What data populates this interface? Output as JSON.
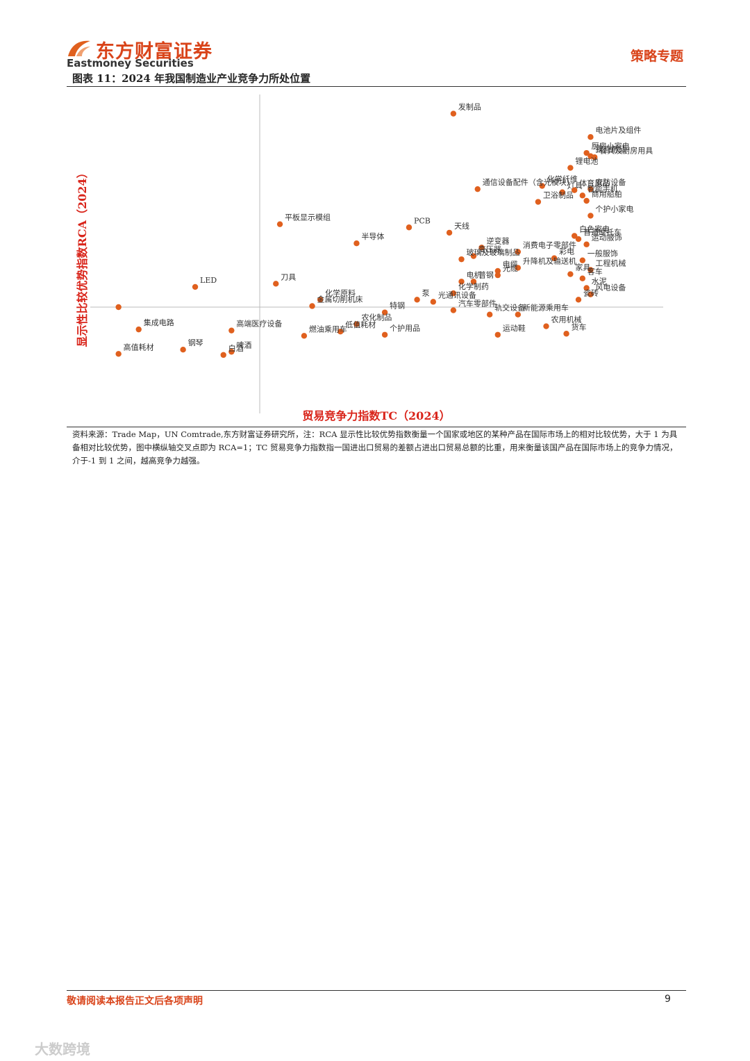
{
  "header": {
    "brand": "东方财富证券",
    "brand_en": "Eastmoney Securities",
    "section": "策略专题"
  },
  "figure_title": "图表 11：2024 年我国制造业产业竞争力所处位置",
  "chart_data": {
    "type": "scatter",
    "x_label": "贸易竞争力指数TC（2024）",
    "y_label": "显示性比较优势指数RCA（2024）",
    "color": "#e0601e",
    "label_color": "#333333",
    "axis_label_color": "#d9241a",
    "xlim": [
      -0.42,
      1.0
    ],
    "ylim": [
      0,
      3
    ],
    "axis_cross": {
      "x": 0,
      "y": 1
    },
    "labels": [
      "发制品",
      "电池片及组件",
      "厨房小家电",
      "餐具及厨房用具",
      "露营用品",
      "锂电池",
      "化学纤维",
      "安防设备",
      "灯具",
      "体育用品",
      "智能手机",
      "卫浴制品",
      "商用船舶",
      "通信设备配件（含光模块）",
      "个护小家电",
      "平板显示模组",
      "PCB",
      "白色家电",
      "普通摩托车",
      "天线",
      "半导体",
      "逆变器",
      "消费电子零部件",
      "运动服饰",
      "变压器",
      "彩电",
      "玻璃及玻璃制品",
      "一般服饰",
      "电缆",
      "升降机及输送机",
      "工程机械",
      "家具",
      "光缆",
      "客车",
      "电机",
      "普钢",
      "刀具",
      "LED",
      "水泥",
      "化学制药",
      "风电设备",
      "化学原料",
      "泵",
      "瓷砖",
      "光通讯设备",
      "金属切削机床",
      null,
      "汽车零部件",
      "特钢",
      "新能源乘用车",
      "轨交设备",
      "农化制品",
      "农用机械",
      "集成电路",
      "高端医疗设备",
      "低值耗材",
      "个护用品",
      "货车",
      "运动鞋",
      "燃油乘用车",
      "钢琴",
      "啤酒",
      "白酒",
      "高值耗材"
    ],
    "x": [
      0.48,
      0.82,
      0.81,
      0.83,
      0.82,
      0.77,
      0.7,
      0.82,
      0.75,
      0.78,
      0.8,
      0.69,
      0.81,
      0.54,
      0.82,
      0.05,
      0.37,
      0.78,
      0.79,
      0.47,
      0.24,
      0.55,
      0.64,
      0.81,
      0.53,
      0.73,
      0.5,
      0.8,
      0.59,
      0.64,
      0.82,
      0.77,
      0.59,
      0.8,
      0.5,
      0.53,
      0.04,
      -0.16,
      0.81,
      0.48,
      0.82,
      0.15,
      0.39,
      0.79,
      0.43,
      0.13,
      -0.35,
      0.48,
      0.31,
      0.64,
      0.57,
      0.24,
      0.71,
      -0.3,
      -0.07,
      0.2,
      0.31,
      0.76,
      0.59,
      0.11,
      -0.19,
      -0.07,
      -0.09,
      -0.35
    ],
    "values": [
      2.82,
      2.6,
      2.45,
      2.41,
      2.42,
      2.31,
      2.14,
      2.11,
      2.08,
      2.1,
      2.05,
      1.99,
      2.0,
      2.11,
      1.86,
      1.78,
      1.75,
      1.67,
      1.64,
      1.7,
      1.6,
      1.56,
      1.52,
      1.59,
      1.48,
      1.46,
      1.45,
      1.44,
      1.34,
      1.37,
      1.35,
      1.31,
      1.3,
      1.27,
      1.24,
      1.24,
      1.22,
      1.19,
      1.18,
      1.13,
      1.12,
      1.07,
      1.07,
      1.07,
      1.05,
      1.01,
      1.0,
      0.97,
      0.95,
      0.93,
      0.93,
      0.84,
      0.82,
      0.79,
      0.78,
      0.77,
      0.74,
      0.75,
      0.74,
      0.73,
      0.6,
      0.58,
      0.55,
      0.56
    ]
  },
  "note": "资料来源：Trade Map，UN Comtrade,东方财富证券研究所，注：RCA 显示性比较优势指数衡量一个国家或地区的某种产品在国际市场上的相对比较优势，大于 1 为具备相对比较优势，图中横纵轴交叉点即为 RCA=1；TC 贸易竞争力指数指一国进出口贸易的差额占进出口贸易总额的比重，用来衡量该国产品在国际市场上的竞争力情况，介于-1 到 1 之间，越高竞争力越强。",
  "footer": {
    "disclaimer": "敬请阅读本报告正文后各项声明",
    "page": "9"
  },
  "watermark": "大数跨境"
}
